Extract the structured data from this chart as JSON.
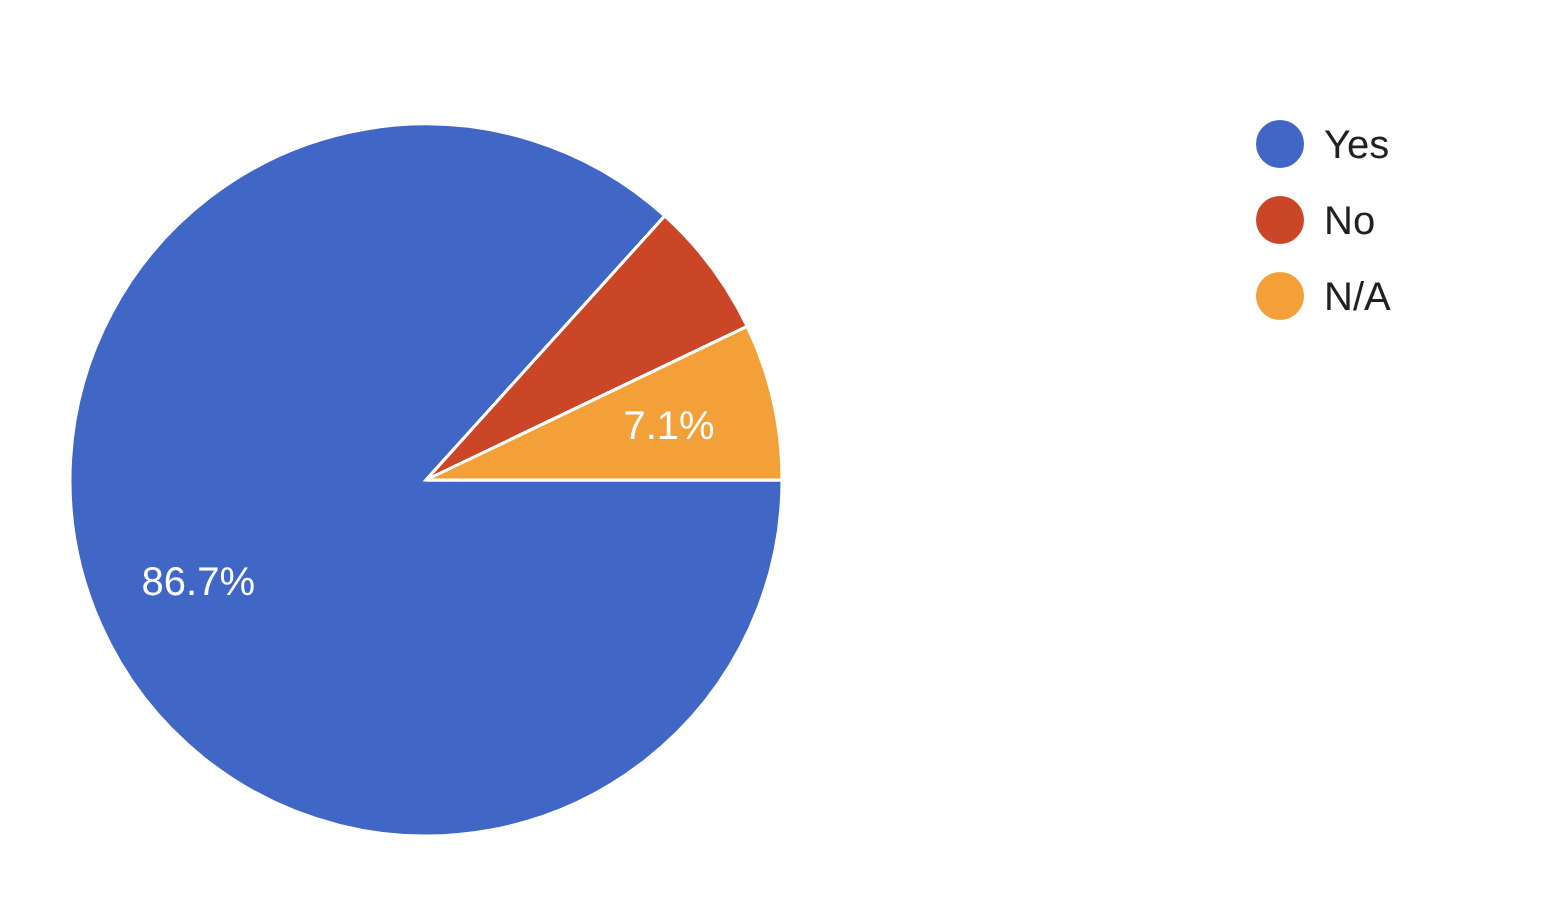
{
  "chart_data": {
    "type": "pie",
    "categories": [
      "Yes",
      "No",
      "N/A"
    ],
    "values": [
      86.7,
      6.2,
      7.1
    ],
    "colors": [
      "#4066c6",
      "#cb4527",
      "#f2a037"
    ],
    "value_labels": [
      "86.7%",
      null,
      "7.1%"
    ],
    "legend": "right"
  }
}
